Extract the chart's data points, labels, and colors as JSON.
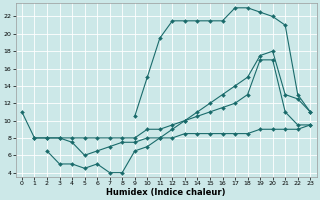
{
  "xlabel": "Humidex (Indice chaleur)",
  "bg_color": "#cce8e8",
  "grid_color": "#b8d8d8",
  "line_color": "#1a6b6b",
  "xlim": [
    -0.5,
    23.5
  ],
  "ylim": [
    3.5,
    23.5
  ],
  "xticks": [
    0,
    1,
    2,
    3,
    4,
    5,
    6,
    7,
    8,
    9,
    10,
    11,
    12,
    13,
    14,
    15,
    16,
    17,
    18,
    19,
    20,
    21,
    22,
    23
  ],
  "yticks": [
    4,
    6,
    8,
    10,
    12,
    14,
    16,
    18,
    20,
    22
  ],
  "curve_top_x": [
    0,
    1,
    2,
    3,
    4,
    5,
    6,
    7,
    8,
    9,
    10,
    11,
    12,
    13,
    14,
    15,
    16,
    17,
    18,
    19,
    20,
    21,
    22,
    23
  ],
  "curve_top_y": [
    11,
    8,
    8,
    8,
    8,
    8,
    8,
    8,
    8,
    8,
    9,
    9,
    9.5,
    10,
    10.5,
    11,
    11.5,
    12,
    13,
    17,
    17,
    11,
    9.5,
    9.5
  ],
  "curve_peak_x": [
    9,
    10,
    11,
    12,
    13,
    14,
    15,
    16,
    17,
    18,
    19,
    20,
    21,
    22,
    23
  ],
  "curve_peak_y": [
    10.5,
    15,
    19.5,
    21.5,
    21.5,
    21.5,
    21.5,
    21.5,
    23,
    23,
    22.5,
    22,
    21,
    13,
    11
  ],
  "curve_diag_x": [
    2,
    3,
    4,
    5,
    6,
    7,
    8,
    9,
    10,
    11,
    12,
    13,
    14,
    15,
    16,
    17,
    18,
    19,
    20,
    21,
    22,
    23
  ],
  "curve_diag_y": [
    6.5,
    5,
    5,
    4.5,
    5,
    4,
    4,
    6.5,
    7,
    8,
    9,
    10,
    11,
    12,
    13,
    14,
    15,
    17.5,
    18,
    13,
    12.5,
    11
  ],
  "curve_flat_x": [
    1,
    2,
    3,
    4,
    5,
    6,
    7,
    8,
    9,
    10,
    11,
    12,
    13,
    14,
    15,
    16,
    17,
    18,
    19,
    20,
    21,
    22,
    23
  ],
  "curve_flat_y": [
    8,
    8,
    8,
    7.5,
    6,
    6.5,
    7,
    7.5,
    7.5,
    8,
    8,
    8,
    8.5,
    8.5,
    8.5,
    8.5,
    8.5,
    8.5,
    9,
    9,
    9,
    9,
    9.5
  ]
}
